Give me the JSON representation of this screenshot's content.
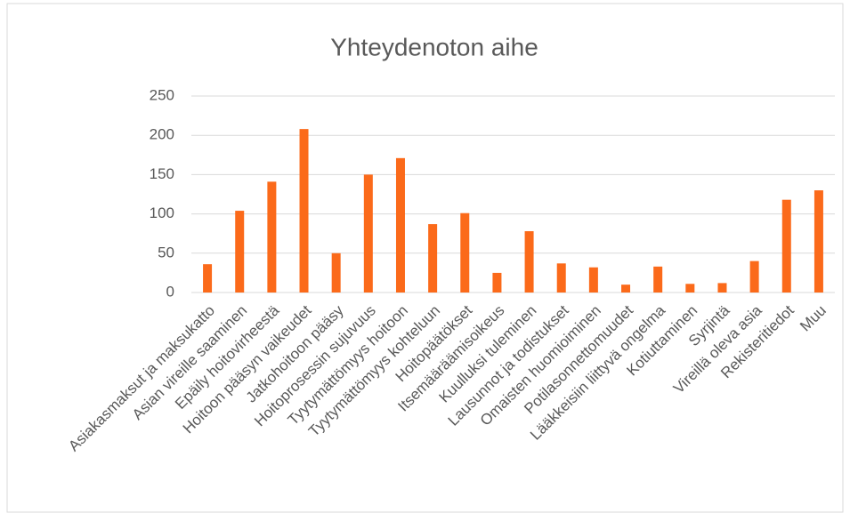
{
  "chart_data": {
    "type": "bar",
    "title": "Yhteydenoton aihe",
    "categories": [
      "Asiakasmaksut ja maksukatto",
      "Asian vireille saaminen",
      "Epäily hoitovirheestä",
      "Hoitoon pääsyn vaikeudet",
      "Jatkohoitoon pääsy",
      "Hoitoprosessin sujuvuus",
      "Tyytymättömyys hoitoon",
      "Tyytymättömyys kohteluun",
      "Hoitopäätökset",
      "Itsemääräämisoikeus",
      "Kuulluksi tuleminen",
      "Lausunnot ja todistukset",
      "Omaisten huomioiminen",
      "Potilasonnettomuudet",
      "Lääkkeisiin liittyvä ongelma",
      "Kotiuttaminen",
      "Syrjintä",
      "Vireillä oleva asia",
      "Rekisteritiedot",
      "Muu"
    ],
    "values": [
      36,
      104,
      141,
      208,
      50,
      150,
      171,
      87,
      101,
      25,
      78,
      37,
      32,
      10,
      33,
      11,
      12,
      40,
      118,
      130
    ],
    "color": "#fb6a1a",
    "ylim": [
      0,
      250
    ],
    "yticks": [
      0,
      50,
      100,
      150,
      200,
      250
    ],
    "grid": true
  }
}
